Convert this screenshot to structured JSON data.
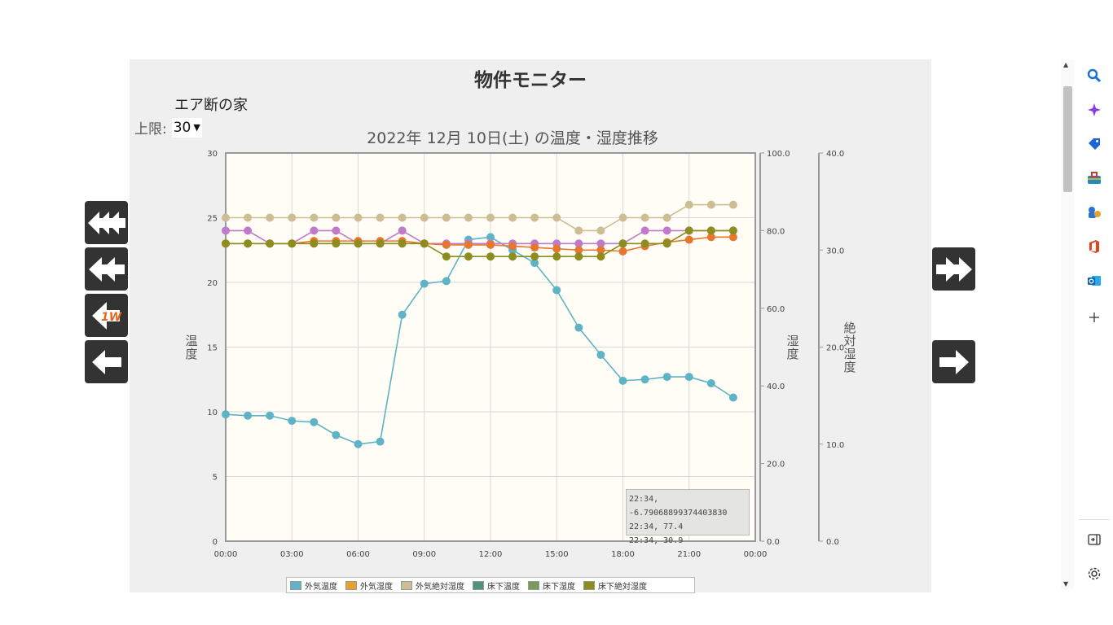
{
  "page": {
    "title": "物件モニター",
    "house_name": "エア断の家",
    "limit_label": "上限:",
    "limit_value": "30"
  },
  "chart_data": {
    "type": "line",
    "title": "2022年 12月 10日(土) の温度・湿度推移",
    "x_tick_labels": [
      "00:00",
      "03:00",
      "06:00",
      "09:00",
      "12:00",
      "15:00",
      "18:00",
      "21:00",
      "00:00"
    ],
    "xlim": [
      0,
      24
    ],
    "axes": {
      "temperature": {
        "label": "温度",
        "ylim": [
          0,
          30
        ],
        "ticks": [
          "0",
          "5",
          "10",
          "15",
          "20",
          "25",
          "30"
        ]
      },
      "humidity": {
        "label": "湿度",
        "ylim": [
          0,
          100
        ],
        "ticks": [
          "0.0",
          "20.0",
          "40.0",
          "60.0",
          "80.0",
          "100.0"
        ]
      },
      "abs_humidity": {
        "label": "絶対湿度",
        "ylim": [
          0,
          40
        ],
        "ticks": [
          "0.0",
          "10.0",
          "20.0",
          "30.0",
          "40.0"
        ]
      }
    },
    "series": [
      {
        "name": "外気温度",
        "axis": "temperature",
        "color": "#5fb3c7",
        "x": [
          0,
          1,
          2,
          3,
          4,
          5,
          6,
          7,
          8,
          9,
          10,
          11,
          12,
          13,
          14,
          15,
          16,
          17,
          18,
          19,
          20,
          21,
          22,
          23
        ],
        "y": [
          9.8,
          9.7,
          9.7,
          9.3,
          9.2,
          8.2,
          7.5,
          7.7,
          17.5,
          19.9,
          20.1,
          23.3,
          23.5,
          22.5,
          21.5,
          19.4,
          16.5,
          14.4,
          12.4,
          12.5,
          12.7,
          12.7,
          12.2,
          11.1
        ]
      },
      {
        "name": "床下温度",
        "axis": "temperature",
        "color": "#c07acc",
        "x": [
          0,
          1,
          2,
          3,
          4,
          5,
          6,
          7,
          8,
          9,
          10,
          11,
          12,
          13,
          14,
          15,
          16,
          17,
          18,
          19,
          20,
          21,
          22,
          23
        ],
        "y": [
          24,
          24,
          23,
          23,
          24,
          24,
          23,
          23,
          24,
          23,
          23,
          23,
          23,
          23,
          23,
          23,
          23,
          23,
          23,
          24,
          24,
          24,
          24,
          24
        ]
      },
      {
        "name": "外気湿度",
        "axis": "temperature",
        "color": "#e8772e",
        "x": [
          0,
          1,
          2,
          3,
          4,
          5,
          6,
          7,
          8,
          9,
          10,
          11,
          12,
          13,
          14,
          15,
          16,
          17,
          18,
          19,
          20,
          21,
          22,
          23
        ],
        "y": [
          23,
          23,
          23,
          23,
          23.2,
          23.2,
          23.2,
          23.2,
          23.2,
          23,
          22.9,
          22.9,
          22.9,
          22.8,
          22.7,
          22.6,
          22.5,
          22.5,
          22.4,
          22.8,
          23.1,
          23.3,
          23.5,
          23.5
        ]
      },
      {
        "name": "外気絶対湿度",
        "axis": "temperature",
        "color": "#cdbd94",
        "x": [
          0,
          1,
          2,
          3,
          4,
          5,
          6,
          7,
          8,
          9,
          10,
          11,
          12,
          13,
          14,
          15,
          16,
          17,
          18,
          19,
          20,
          21,
          22,
          23
        ],
        "y": [
          25,
          25,
          25,
          25,
          25,
          25,
          25,
          25,
          25,
          25,
          25,
          25,
          25,
          25,
          25,
          25,
          24,
          24,
          25,
          25,
          25,
          26,
          26,
          26
        ]
      },
      {
        "name": "床下絶対湿度",
        "axis": "temperature",
        "color": "#8c8c1f",
        "x": [
          0,
          1,
          2,
          3,
          4,
          5,
          6,
          7,
          8,
          9,
          10,
          11,
          12,
          13,
          14,
          15,
          16,
          17,
          18,
          19,
          20,
          21,
          22,
          23
        ],
        "y": [
          23,
          23,
          23,
          23,
          23,
          23,
          23,
          23,
          23,
          23,
          22,
          22,
          22,
          22,
          22,
          22,
          22,
          22,
          23,
          23,
          23,
          24,
          24,
          24
        ]
      }
    ],
    "legend": [
      {
        "name": "外気温度",
        "color": "#5fb3c7"
      },
      {
        "name": "外気湿度",
        "color": "#e8a030"
      },
      {
        "name": "外気絶対湿度",
        "color": "#cdbd94"
      },
      {
        "name": "床下温度",
        "color": "#4f9478"
      },
      {
        "name": "床下湿度",
        "color": "#7b9a5a"
      },
      {
        "name": "床下絶対湿度",
        "color": "#8c8c1f"
      }
    ],
    "tooltip_lines": [
      "22:34, -6.79068899374403830",
      "22:34, 77.4",
      "22:34, 30.9"
    ],
    "grid": true,
    "legend_position": "bottom"
  },
  "sidebar": {
    "icons": [
      "search-icon",
      "copilot-icon",
      "tag-icon",
      "toolbox-icon",
      "games-icon",
      "office-icon",
      "outlook-icon",
      "plus-icon",
      "split-screen-icon",
      "settings-icon"
    ]
  }
}
